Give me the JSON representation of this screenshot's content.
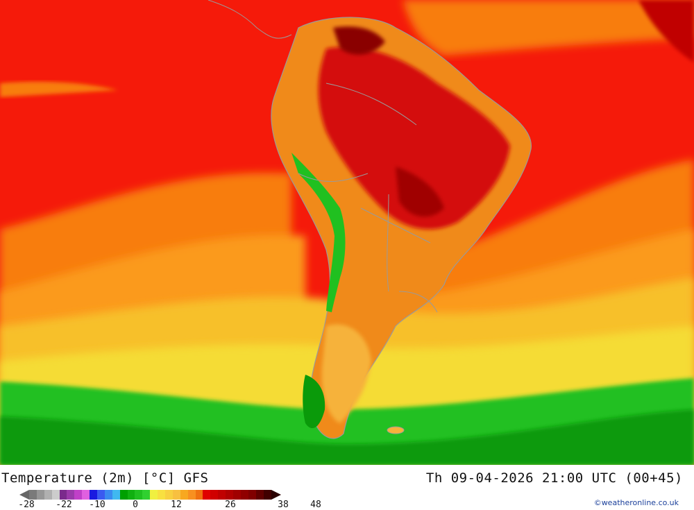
{
  "map": {
    "variable": "Temperature (2m) [°C]",
    "model": "GFS",
    "title": "Temperature (2m) [°C] GFS",
    "valid_time": "Th 09-04-2026 21:00 UTC (00+45)",
    "region": "South America",
    "credit": "©weatheronline.co.uk"
  },
  "legend": {
    "tick_labels": [
      "-28",
      "-22",
      "-10",
      "0",
      "12",
      "26",
      "38",
      "48"
    ],
    "colors": [
      "#7a7a7a",
      "#969696",
      "#b0b0b0",
      "#cccccc",
      "#7a2a8c",
      "#9a3aaa",
      "#c040c8",
      "#e060e0",
      "#1a1ae0",
      "#3a5af0",
      "#3a8af0",
      "#40b8f0",
      "#00a000",
      "#10b010",
      "#20c020",
      "#30d030",
      "#f0f040",
      "#f8e040",
      "#f8d040",
      "#f8c040",
      "#f8a820",
      "#f89020",
      "#f07010",
      "#e00000",
      "#d00000",
      "#c00000",
      "#b00000",
      "#a00000",
      "#900000",
      "#800000",
      "#600000",
      "#400000"
    ],
    "arrow_left_color": "#666666",
    "arrow_right_color": "#2a0000"
  },
  "palette": {
    "land_border": "#9a9a9a",
    "ocean_hot": "#f51a0a",
    "ocean_orange": "#f87d0f",
    "ocean_lightorange": "#fb9a1e",
    "ocean_yellow": "#f7c02a",
    "ocean_yellow2": "#f5dc34",
    "ocean_green": "#20c020",
    "ocean_darkgreen": "#0a9a0a"
  }
}
